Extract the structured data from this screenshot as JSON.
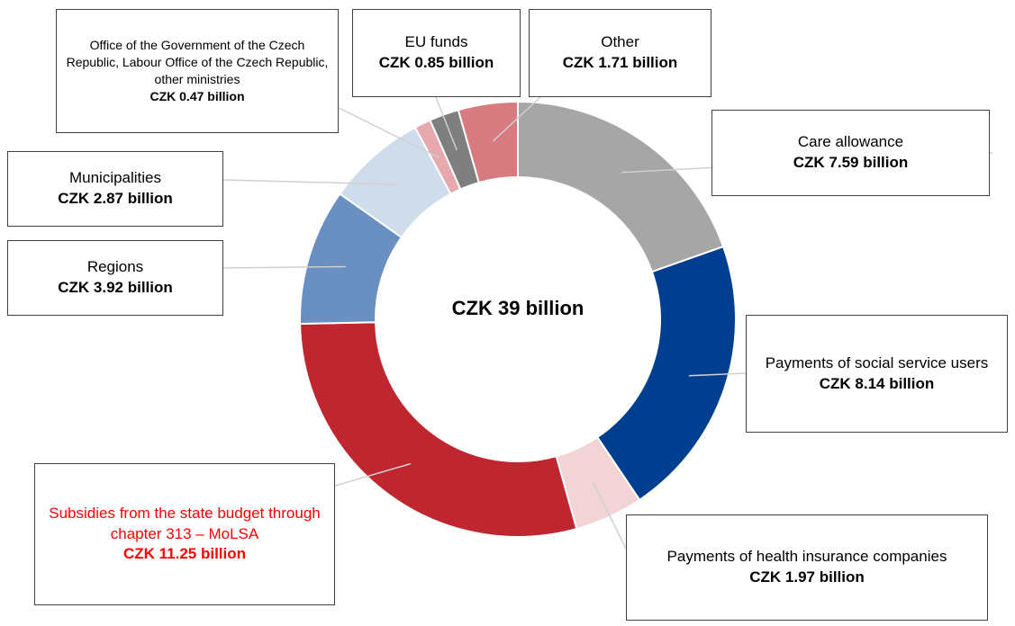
{
  "chart_data": {
    "type": "donut",
    "center_label": "CZK 39 billion",
    "categories": [
      "Care allowance",
      "Payments of social service users",
      "Payments of health insurance companies",
      "Subsidies from the state budget through chapter 313 – MoLSA",
      "Regions",
      "Municipalities",
      "Office of the Government of the Czech Republic, Labour Office of the Czech Republic, other ministries",
      "EU funds",
      "Other"
    ],
    "values": [
      7.59,
      8.14,
      1.97,
      11.25,
      3.92,
      2.87,
      0.47,
      0.85,
      1.71
    ],
    "value_labels": [
      "CZK 7.59 billion",
      "CZK 8.14 billion",
      "CZK 1.97 billion",
      "CZK 11.25 billion",
      "CZK 3.92 billion",
      "CZK 2.87 billion",
      "CZK 0.47 billion",
      "CZK 0.85 billion",
      "CZK 1.71 billion"
    ],
    "colors": [
      "#a6a6a6",
      "#003f8f",
      "#f2d4d7",
      "#c0262f",
      "#6a8fc1",
      "#cfdcec",
      "#e8a9ae",
      "#7f7f7f",
      "#d87b80"
    ],
    "label_colors": [
      "#000000",
      "#000000",
      "#000000",
      "#ff0000",
      "#000000",
      "#000000",
      "#000000",
      "#000000",
      "#000000"
    ]
  }
}
